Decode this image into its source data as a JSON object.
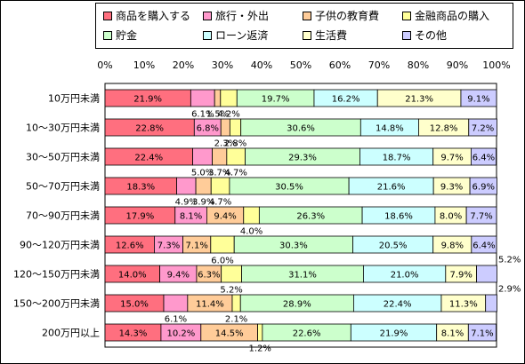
{
  "chart_data": {
    "type": "bar",
    "stacked": true,
    "percent": true,
    "orientation": "horizontal",
    "xlim": [
      0,
      100
    ],
    "x_ticks": [
      "0%",
      "10%",
      "20%",
      "30%",
      "40%",
      "50%",
      "60%",
      "70%",
      "80%",
      "90%",
      "100%"
    ],
    "categories": [
      "10万円未満",
      "10～30万円未満",
      "30～50万円未満",
      "50～70万円未満",
      "70～90万円未満",
      "90～120万円未満",
      "120～150万円未満",
      "150～200万円未満",
      "200万円以上"
    ],
    "series": [
      {
        "name": "商品を購入する",
        "color": "#ff6f7f",
        "values": [
          21.9,
          22.8,
          22.4,
          18.3,
          17.9,
          12.6,
          14.0,
          15.0,
          14.3
        ],
        "labels": [
          "21.9%",
          "22.8%",
          "22.4%",
          "18.3%",
          "17.9%",
          "12.6%",
          "14.0%",
          "15.0%",
          "14.3%"
        ]
      },
      {
        "name": "旅行・外出",
        "color": "#ff99cc",
        "values": [
          6.1,
          6.8,
          5.0,
          4.9,
          8.1,
          7.3,
          9.4,
          6.1,
          10.2
        ],
        "labels": [
          "6.1%",
          "6.8%",
          "5.0%",
          "4.9%",
          "8.1%",
          "7.3%",
          "9.4%",
          "6.1%",
          "10.2%"
        ]
      },
      {
        "name": "子供の教育費",
        "color": "#ffcc99",
        "values": [
          1.5,
          2.3,
          3.7,
          3.9,
          9.4,
          7.1,
          6.3,
          11.4,
          14.5
        ],
        "labels": [
          "1.5%",
          "2.3%",
          "3.7%",
          "3.9%",
          "9.4%",
          "7.1%",
          "6.3%",
          "11.4%",
          "14.5%"
        ]
      },
      {
        "name": "金融商品の購入",
        "color": "#ffff99",
        "values": [
          4.2,
          2.8,
          4.7,
          4.7,
          4.0,
          6.0,
          5.2,
          2.1,
          1.2
        ],
        "labels": [
          "4.2%",
          "2.8%",
          "4.7%",
          "4.7%",
          "4.0%",
          "6.0%",
          "5.2%",
          "2.1%",
          "1.2%"
        ]
      },
      {
        "name": "貯金",
        "color": "#ccffcc",
        "values": [
          19.7,
          30.6,
          29.3,
          30.5,
          26.3,
          30.3,
          31.1,
          28.9,
          22.6
        ],
        "labels": [
          "19.7%",
          "30.6%",
          "29.3%",
          "30.5%",
          "26.3%",
          "30.3%",
          "31.1%",
          "28.9%",
          "22.6%"
        ]
      },
      {
        "name": "ローン返済",
        "color": "#ccffff",
        "values": [
          16.2,
          14.8,
          18.7,
          21.6,
          18.6,
          20.5,
          21.0,
          22.4,
          21.9
        ],
        "labels": [
          "16.2%",
          "14.8%",
          "18.7%",
          "21.6%",
          "18.6%",
          "20.5%",
          "21.0%",
          "22.4%",
          "21.9%"
        ]
      },
      {
        "name": "生活費",
        "color": "#ffffcc",
        "values": [
          21.3,
          12.8,
          9.7,
          9.3,
          8.0,
          9.8,
          7.9,
          11.3,
          8.1
        ],
        "labels": [
          "21.3%",
          "12.8%",
          "9.7%",
          "9.3%",
          "8.0%",
          "9.8%",
          "7.9%",
          "11.3%",
          "8.1%"
        ]
      },
      {
        "name": "その他",
        "color": "#ccccff",
        "values": [
          9.1,
          7.2,
          6.4,
          6.9,
          7.7,
          6.4,
          5.2,
          2.9,
          7.1
        ],
        "labels": [
          "9.1%",
          "7.2%",
          "6.4%",
          "6.9%",
          "7.7%",
          "6.4%",
          "5.2%",
          "2.9%",
          "7.1%"
        ]
      }
    ]
  }
}
